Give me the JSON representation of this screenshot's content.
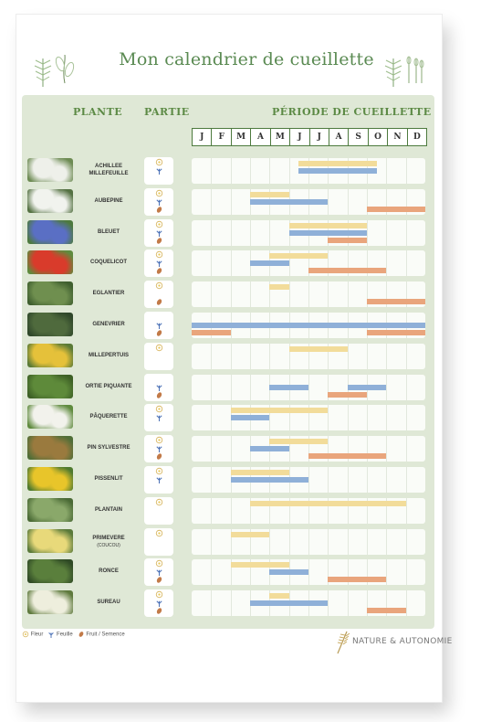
{
  "title": "Mon calendrier de cueillette",
  "headers": {
    "plant": "PLANTE",
    "part": "PARTIE",
    "period": "PÉRIODE DE CUEILLETTE"
  },
  "months": [
    "J",
    "F",
    "M",
    "A",
    "M",
    "J",
    "J",
    "A",
    "S",
    "O",
    "N",
    "D"
  ],
  "colors": {
    "flower": "#f2dc9a",
    "leaf": "#8fb0d8",
    "fruit": "#e9a57c",
    "accent": "#5c8a45",
    "panel": "#dfe8d6"
  },
  "plants": [
    {
      "name": "ACHILLEE",
      "name2": "MILLEFEUILLE",
      "sub": "",
      "parts": [
        "flower",
        "leaf"
      ],
      "photo": [
        "#eef0ea",
        "#6d8b53"
      ],
      "flower": [
        [
          5.5,
          9.5
        ]
      ],
      "leaf": [
        [
          5.5,
          9.5
        ]
      ],
      "fruit": []
    },
    {
      "name": "AUBEPINE",
      "name2": "",
      "sub": "",
      "parts": [
        "flower",
        "leaf",
        "fruit"
      ],
      "photo": [
        "#f1f3ee",
        "#557243"
      ],
      "flower": [
        [
          3,
          5
        ]
      ],
      "leaf": [
        [
          3,
          7
        ]
      ],
      "fruit": [
        [
          9,
          12
        ]
      ]
    },
    {
      "name": "BLEUET",
      "name2": "",
      "sub": "",
      "parts": [
        "flower",
        "leaf",
        "fruit"
      ],
      "photo": [
        "#5a6fc4",
        "#4d7a3e"
      ],
      "flower": [
        [
          5,
          9
        ]
      ],
      "leaf": [
        [
          5,
          9
        ]
      ],
      "fruit": [
        [
          7,
          9
        ]
      ]
    },
    {
      "name": "COQUELICOT",
      "name2": "",
      "sub": "",
      "parts": [
        "flower",
        "leaf",
        "fruit"
      ],
      "photo": [
        "#d93b2b",
        "#5f8b3e"
      ],
      "flower": [
        [
          4,
          7
        ]
      ],
      "leaf": [
        [
          3,
          5
        ]
      ],
      "fruit": [
        [
          6,
          10
        ]
      ]
    },
    {
      "name": "EGLANTIER",
      "name2": "",
      "sub": "",
      "parts": [
        "flower",
        "fruit"
      ],
      "photo": [
        "#6f8f4f",
        "#3f5f2f"
      ],
      "flower": [
        [
          4,
          5
        ]
      ],
      "leaf": [],
      "fruit": [
        [
          9,
          12
        ]
      ]
    },
    {
      "name": "GENEVRIER",
      "name2": "",
      "sub": "",
      "parts": [
        "leaf",
        "fruit"
      ],
      "photo": [
        "#4f6a3d",
        "#2f472a"
      ],
      "flower": [],
      "leaf": [
        [
          0,
          12
        ]
      ],
      "fruit": [
        [
          0,
          2
        ],
        [
          9,
          12
        ]
      ]
    },
    {
      "name": "MILLEPERTUIS",
      "name2": "",
      "sub": "",
      "parts": [
        "flower"
      ],
      "photo": [
        "#e5c13a",
        "#5a7a36"
      ],
      "flower": [
        [
          5,
          8
        ]
      ],
      "leaf": [],
      "fruit": []
    },
    {
      "name": "ORTIE PIQUANTE",
      "name2": "",
      "sub": "",
      "parts": [
        "leaf",
        "fruit"
      ],
      "photo": [
        "#5e8a3a",
        "#3d6025"
      ],
      "flower": [],
      "leaf": [
        [
          4,
          6
        ],
        [
          8,
          10
        ]
      ],
      "fruit": [
        [
          7,
          9
        ]
      ]
    },
    {
      "name": "PÂQUERETTE",
      "name2": "",
      "sub": "",
      "parts": [
        "flower",
        "leaf"
      ],
      "photo": [
        "#f2f2ec",
        "#5f8b3e"
      ],
      "flower": [
        [
          2,
          7
        ]
      ],
      "leaf": [
        [
          2,
          4
        ]
      ],
      "fruit": []
    },
    {
      "name": "PIN SYLVESTRE",
      "name2": "",
      "sub": "",
      "parts": [
        "flower",
        "leaf",
        "fruit"
      ],
      "photo": [
        "#9a7a3e",
        "#4f6e37"
      ],
      "flower": [
        [
          4,
          7
        ]
      ],
      "leaf": [
        [
          3,
          5
        ]
      ],
      "fruit": [
        [
          6,
          10
        ]
      ]
    },
    {
      "name": "PISSENLIT",
      "name2": "",
      "sub": "",
      "parts": [
        "flower",
        "leaf"
      ],
      "photo": [
        "#e8c52a",
        "#4f7a2f"
      ],
      "flower": [
        [
          2,
          5
        ]
      ],
      "leaf": [
        [
          2,
          6
        ]
      ],
      "fruit": []
    },
    {
      "name": "PLANTAIN",
      "name2": "",
      "sub": "",
      "parts": [
        "flower"
      ],
      "photo": [
        "#8aa86a",
        "#4a6a35"
      ],
      "flower": [
        [
          3,
          11
        ]
      ],
      "leaf": [],
      "fruit": []
    },
    {
      "name": "PRIMEVERE",
      "name2": "",
      "sub": "(COUCOU)",
      "parts": [
        "flower"
      ],
      "photo": [
        "#e8d97a",
        "#5a7a3a"
      ],
      "flower": [
        [
          2,
          4
        ]
      ],
      "leaf": [],
      "fruit": []
    },
    {
      "name": "RONCE",
      "name2": "",
      "sub": "",
      "parts": [
        "flower",
        "leaf",
        "fruit"
      ],
      "photo": [
        "#5a7f3c",
        "#2f4a25"
      ],
      "flower": [
        [
          2,
          5
        ]
      ],
      "leaf": [
        [
          4,
          6
        ]
      ],
      "fruit": [
        [
          7,
          10
        ]
      ]
    },
    {
      "name": "SUREAU",
      "name2": "",
      "sub": "",
      "parts": [
        "flower",
        "leaf",
        "fruit"
      ],
      "photo": [
        "#eeeedd",
        "#5f7a3e"
      ],
      "flower": [
        [
          4,
          5
        ]
      ],
      "leaf": [
        [
          3,
          7
        ]
      ],
      "fruit": [
        [
          9,
          11
        ]
      ]
    }
  ],
  "legend": {
    "flower": "Fleur",
    "leaf": "Feuille",
    "fruit": "Fruit / Semence"
  },
  "brand": "NATURE & AUTONOMIE"
}
